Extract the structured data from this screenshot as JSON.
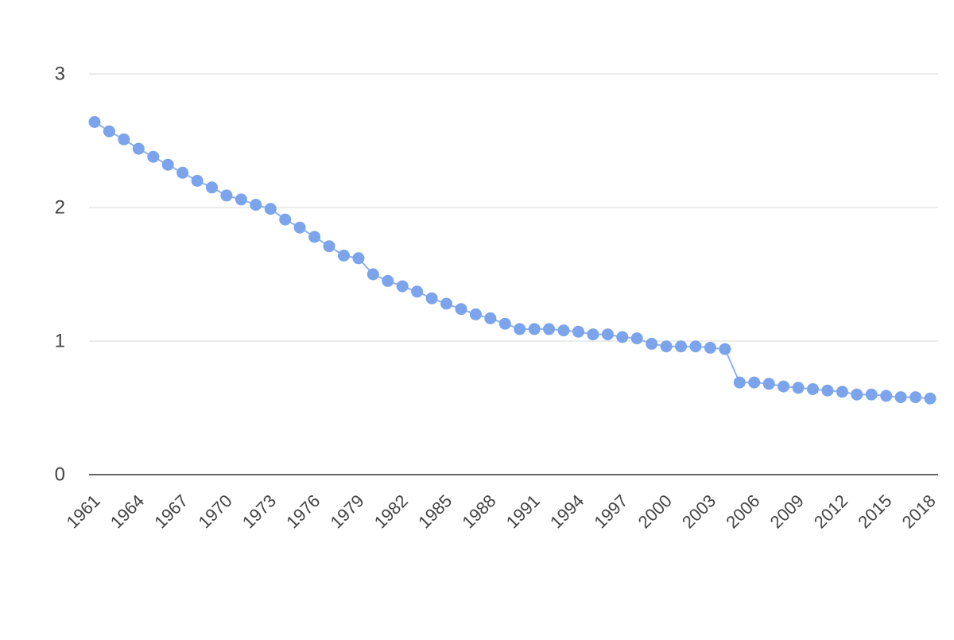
{
  "colors": {
    "series": "#7ba4ec",
    "line": "#8fb2ee",
    "grid": "#e0e0e0",
    "axis": "#333333",
    "text": "#444444",
    "background": "#ffffff"
  },
  "chart_data": {
    "type": "line",
    "title": "",
    "xlabel": "",
    "ylabel": "",
    "grid": true,
    "markers": "circle",
    "xlim": [
      1961,
      2018
    ],
    "ylim": [
      0,
      3
    ],
    "y_ticks": [
      0,
      1,
      2,
      3
    ],
    "x_ticks": [
      1961,
      1964,
      1967,
      1970,
      1973,
      1976,
      1979,
      1982,
      1985,
      1988,
      1991,
      1994,
      1997,
      2000,
      2003,
      2006,
      2009,
      2012,
      2015,
      2018
    ],
    "series": [
      {
        "x": [
          1961,
          1962,
          1963,
          1964,
          1965,
          1966,
          1967,
          1968,
          1969,
          1970,
          1971,
          1972,
          1973,
          1974,
          1975,
          1976,
          1977,
          1978,
          1979,
          1980,
          1981,
          1982,
          1983,
          1984,
          1985,
          1986,
          1987,
          1988,
          1989,
          1990,
          1991,
          1992,
          1993,
          1994,
          1995,
          1996,
          1997,
          1998,
          1999,
          2000,
          2001,
          2002,
          2003,
          2004,
          2005,
          2006,
          2007,
          2008,
          2009,
          2010,
          2011,
          2012,
          2013,
          2014,
          2015,
          2016,
          2017,
          2018
        ],
        "values": [
          2.64,
          2.57,
          2.51,
          2.44,
          2.38,
          2.32,
          2.26,
          2.2,
          2.15,
          2.09,
          2.06,
          2.02,
          1.99,
          1.91,
          1.85,
          1.78,
          1.71,
          1.64,
          1.62,
          1.5,
          1.45,
          1.41,
          1.37,
          1.32,
          1.28,
          1.24,
          1.2,
          1.17,
          1.13,
          1.09,
          1.09,
          1.09,
          1.08,
          1.07,
          1.05,
          1.05,
          1.03,
          1.02,
          0.98,
          0.96,
          0.96,
          0.96,
          0.95,
          0.94,
          0.69,
          0.69,
          0.68,
          0.66,
          0.65,
          0.64,
          0.63,
          0.62,
          0.6,
          0.6,
          0.59,
          0.58,
          0.58,
          0.57
        ]
      }
    ]
  }
}
